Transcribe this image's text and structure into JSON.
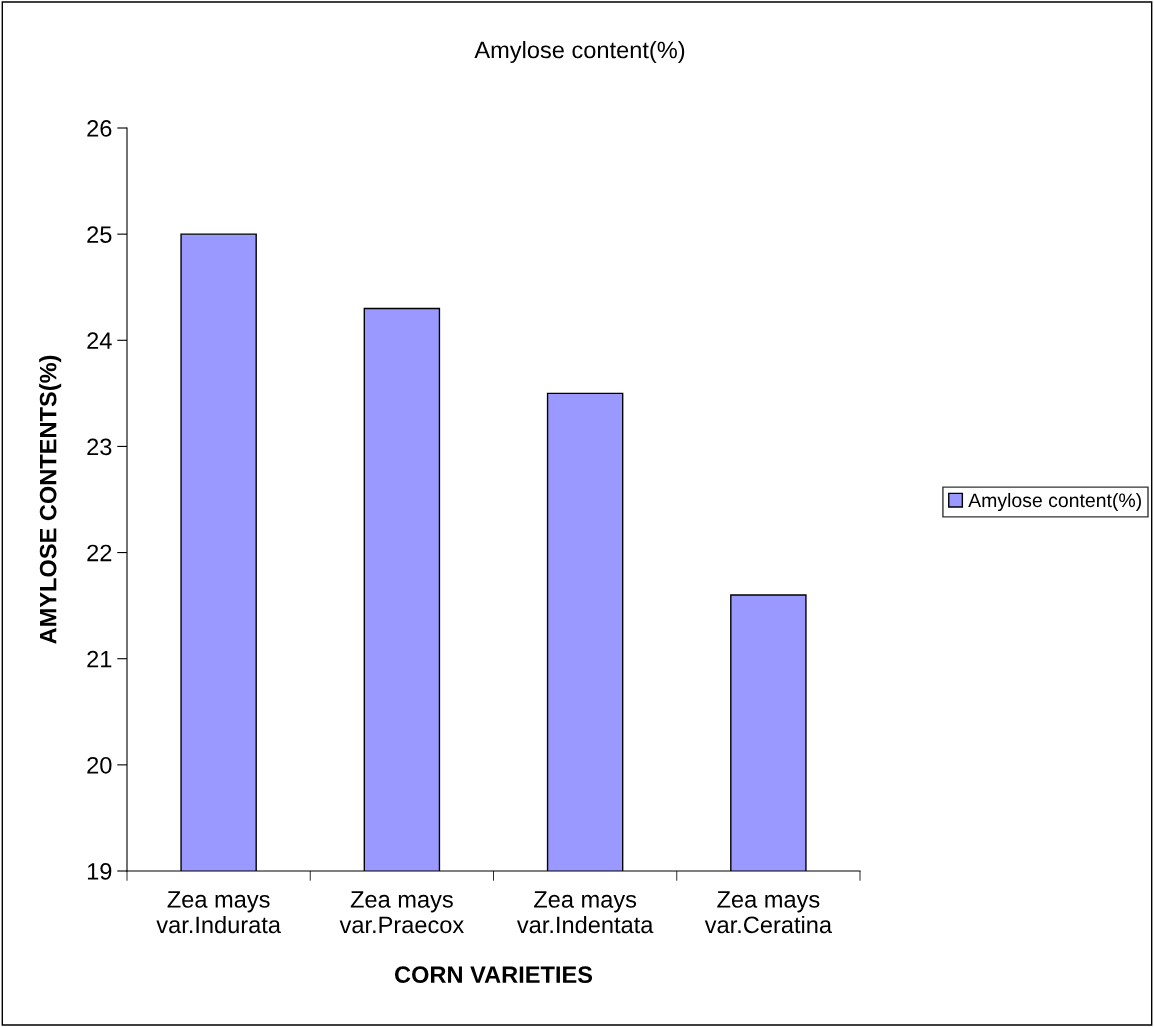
{
  "chart_data": {
    "type": "bar",
    "title": "Amylose content(%)",
    "xlabel": "CORN VARIETIES",
    "ylabel": "AMYLOSE CONTENTS(%)",
    "categories": [
      "Zea mays\nvar.Indurata",
      "Zea mays\nvar.Praecox",
      "Zea mays\nvar.Indentata",
      "Zea mays\nvar.Ceratina"
    ],
    "series": [
      {
        "name": "Amylose content(%)",
        "color": "#9999ff",
        "values": [
          25.0,
          24.3,
          23.5,
          21.6
        ]
      }
    ],
    "ylim": [
      19,
      26
    ],
    "yticks": [
      19,
      20,
      21,
      22,
      23,
      24,
      25,
      26
    ],
    "grid": false,
    "legend": "right"
  }
}
